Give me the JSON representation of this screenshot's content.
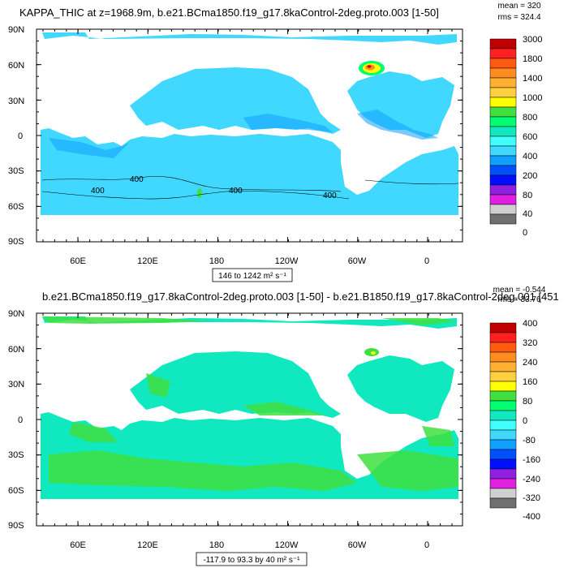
{
  "chart_data": [
    {
      "type": "heatmap",
      "title": "KAPPA_THIC at z=1968.9m, b.e21.BCma1850.f19_g17.8kaControl-2deg.proto.003 [1-50]",
      "stats": {
        "mean": "mean = 320",
        "rms": "rms = 324.4"
      },
      "x_ticks": [
        "60E",
        "120E",
        "180",
        "120W",
        "60W",
        "0"
      ],
      "y_ticks": [
        "90N",
        "60N",
        "30N",
        "0",
        "30S",
        "60S",
        "90S"
      ],
      "colorbar_labels": [
        "3000",
        "1800",
        "1400",
        "1000",
        "800",
        "600",
        "400",
        "200",
        "80",
        "40",
        "0"
      ],
      "colorbar_colors": [
        "#c00000",
        "#ff2020",
        "#ff5a10",
        "#ff8c20",
        "#ffb030",
        "#ffd040",
        "#ffff00",
        "#40e040",
        "#00ff70",
        "#10e8c0",
        "#40ffff",
        "#40d8ff",
        "#10a0ff",
        "#0050ff",
        "#0010ff",
        "#9020e0",
        "#e020e0",
        "#d0d0d0",
        "#707070"
      ],
      "contour_labels": [
        "400",
        "400",
        "400",
        "400"
      ],
      "range_label": "146 to 1242 m² s⁻¹"
    },
    {
      "type": "heatmap",
      "title": "b.e21.BCma1850.f19_g17.8kaControl-2deg.proto.003 [1-50] - b.e21.B1850.f19_g17.8kaControl-2deg.001 [451",
      "stats": {
        "mean": "mean = -0.544",
        "rms": "rms = 33.76"
      },
      "x_ticks": [
        "60E",
        "120E",
        "180",
        "120W",
        "60W",
        "0"
      ],
      "y_ticks": [
        "90N",
        "60N",
        "30N",
        "0",
        "30S",
        "60S",
        "90S"
      ],
      "colorbar_labels": [
        "400",
        "320",
        "240",
        "160",
        "80",
        "0",
        "-80",
        "-160",
        "-240",
        "-320",
        "-400"
      ],
      "colorbar_colors": [
        "#c00000",
        "#ff2020",
        "#ff5a10",
        "#ff8c20",
        "#ffb030",
        "#ffd040",
        "#ffff00",
        "#40e040",
        "#00ff70",
        "#10e8c0",
        "#40ffff",
        "#40d8ff",
        "#10a0ff",
        "#0050ff",
        "#0010ff",
        "#9020e0",
        "#e020e0",
        "#d0d0d0",
        "#707070"
      ],
      "range_label": "-117.9 to 93.3 by 40 m² s⁻¹"
    }
  ]
}
